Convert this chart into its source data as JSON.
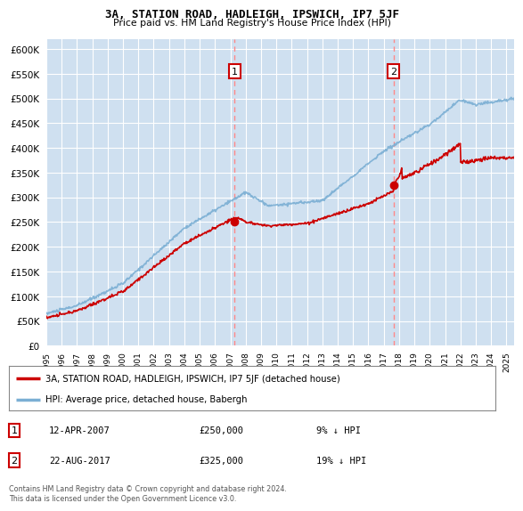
{
  "title": "3A, STATION ROAD, HADLEIGH, IPSWICH, IP7 5JF",
  "subtitle": "Price paid vs. HM Land Registry's House Price Index (HPI)",
  "ylim": [
    0,
    620000
  ],
  "yticks": [
    0,
    50000,
    100000,
    150000,
    200000,
    250000,
    300000,
    350000,
    400000,
    450000,
    500000,
    550000,
    600000
  ],
  "background_color": "#ffffff",
  "plot_bg_color": "#cfe0f0",
  "grid_color": "#ffffff",
  "purchase1": {
    "date_num": 2007.28,
    "price": 250000,
    "label": "1",
    "date_str": "12-APR-2007",
    "hpi_diff": "9% ↓ HPI"
  },
  "purchase2": {
    "date_num": 2017.64,
    "price": 325000,
    "label": "2",
    "date_str": "22-AUG-2017",
    "hpi_diff": "19% ↓ HPI"
  },
  "legend_property": "3A, STATION ROAD, HADLEIGH, IPSWICH, IP7 5JF (detached house)",
  "legend_hpi": "HPI: Average price, detached house, Babergh",
  "footer": "Contains HM Land Registry data © Crown copyright and database right 2024.\nThis data is licensed under the Open Government Licence v3.0.",
  "property_color": "#cc0000",
  "hpi_color": "#7bafd4",
  "vline_color": "#ff8888",
  "xmin": 1995.0,
  "xmax": 2025.5
}
